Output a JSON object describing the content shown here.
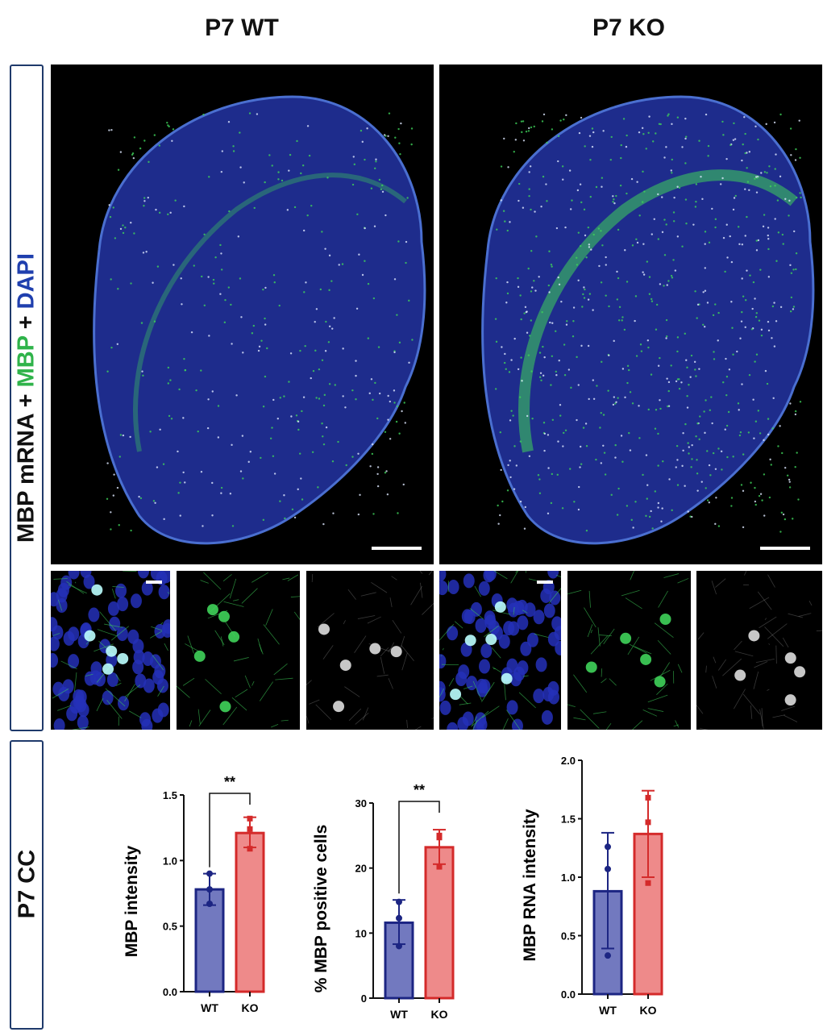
{
  "columns": {
    "wt": "P7 WT",
    "ko": "P7 KO"
  },
  "row_labels": {
    "stain_part1": "MBP mRNA + ",
    "stain_part2": "MBP",
    "stain_part3": " + ",
    "stain_part4": "DAPI",
    "region": "P7 CC"
  },
  "colors": {
    "wt_fill": "#7279bf",
    "wt_edge": "#1c2583",
    "ko_fill": "#ee8a8a",
    "ko_edge": "#d42a2a",
    "dapi": "#2430b8",
    "mbp": "#3fd35a"
  },
  "chart_data": [
    {
      "type": "bar",
      "ylabel": "MBP intensity",
      "categories": [
        "WT",
        "KO"
      ],
      "ylim": [
        0,
        1.5
      ],
      "yticks": [
        "0.0",
        "0.5",
        "1.0",
        "1.5"
      ],
      "values": [
        0.78,
        1.21
      ],
      "err_low": [
        0.66,
        1.1
      ],
      "err_high": [
        0.9,
        1.33
      ],
      "points": [
        [
          0.9,
          0.78,
          0.67
        ],
        [
          1.32,
          1.24,
          1.09
        ]
      ],
      "significance": "**"
    },
    {
      "type": "bar",
      "ylabel": "% MBP positive cells",
      "categories": [
        "WT",
        "KO"
      ],
      "ylim": [
        0,
        30
      ],
      "yticks": [
        "0",
        "10",
        "20",
        "30"
      ],
      "values": [
        11.6,
        23.2
      ],
      "err_low": [
        8.3,
        20.6
      ],
      "err_high": [
        15.1,
        25.9
      ],
      "points": [
        [
          14.8,
          12.3,
          8.0
        ],
        [
          25.0,
          24.7,
          20.2
        ]
      ],
      "significance": "**"
    },
    {
      "type": "bar",
      "ylabel": "MBP RNA intensity",
      "categories": [
        "WT",
        "KO"
      ],
      "ylim": [
        0,
        2.0
      ],
      "yticks": [
        "0.0",
        "0.5",
        "1.0",
        "1.5",
        "2.0"
      ],
      "values": [
        0.88,
        1.37
      ],
      "err_low": [
        0.39,
        1.0
      ],
      "err_high": [
        1.38,
        1.74
      ],
      "points": [
        [
          1.26,
          1.07,
          0.33
        ],
        [
          1.68,
          1.47,
          0.95
        ]
      ],
      "significance": ""
    }
  ]
}
